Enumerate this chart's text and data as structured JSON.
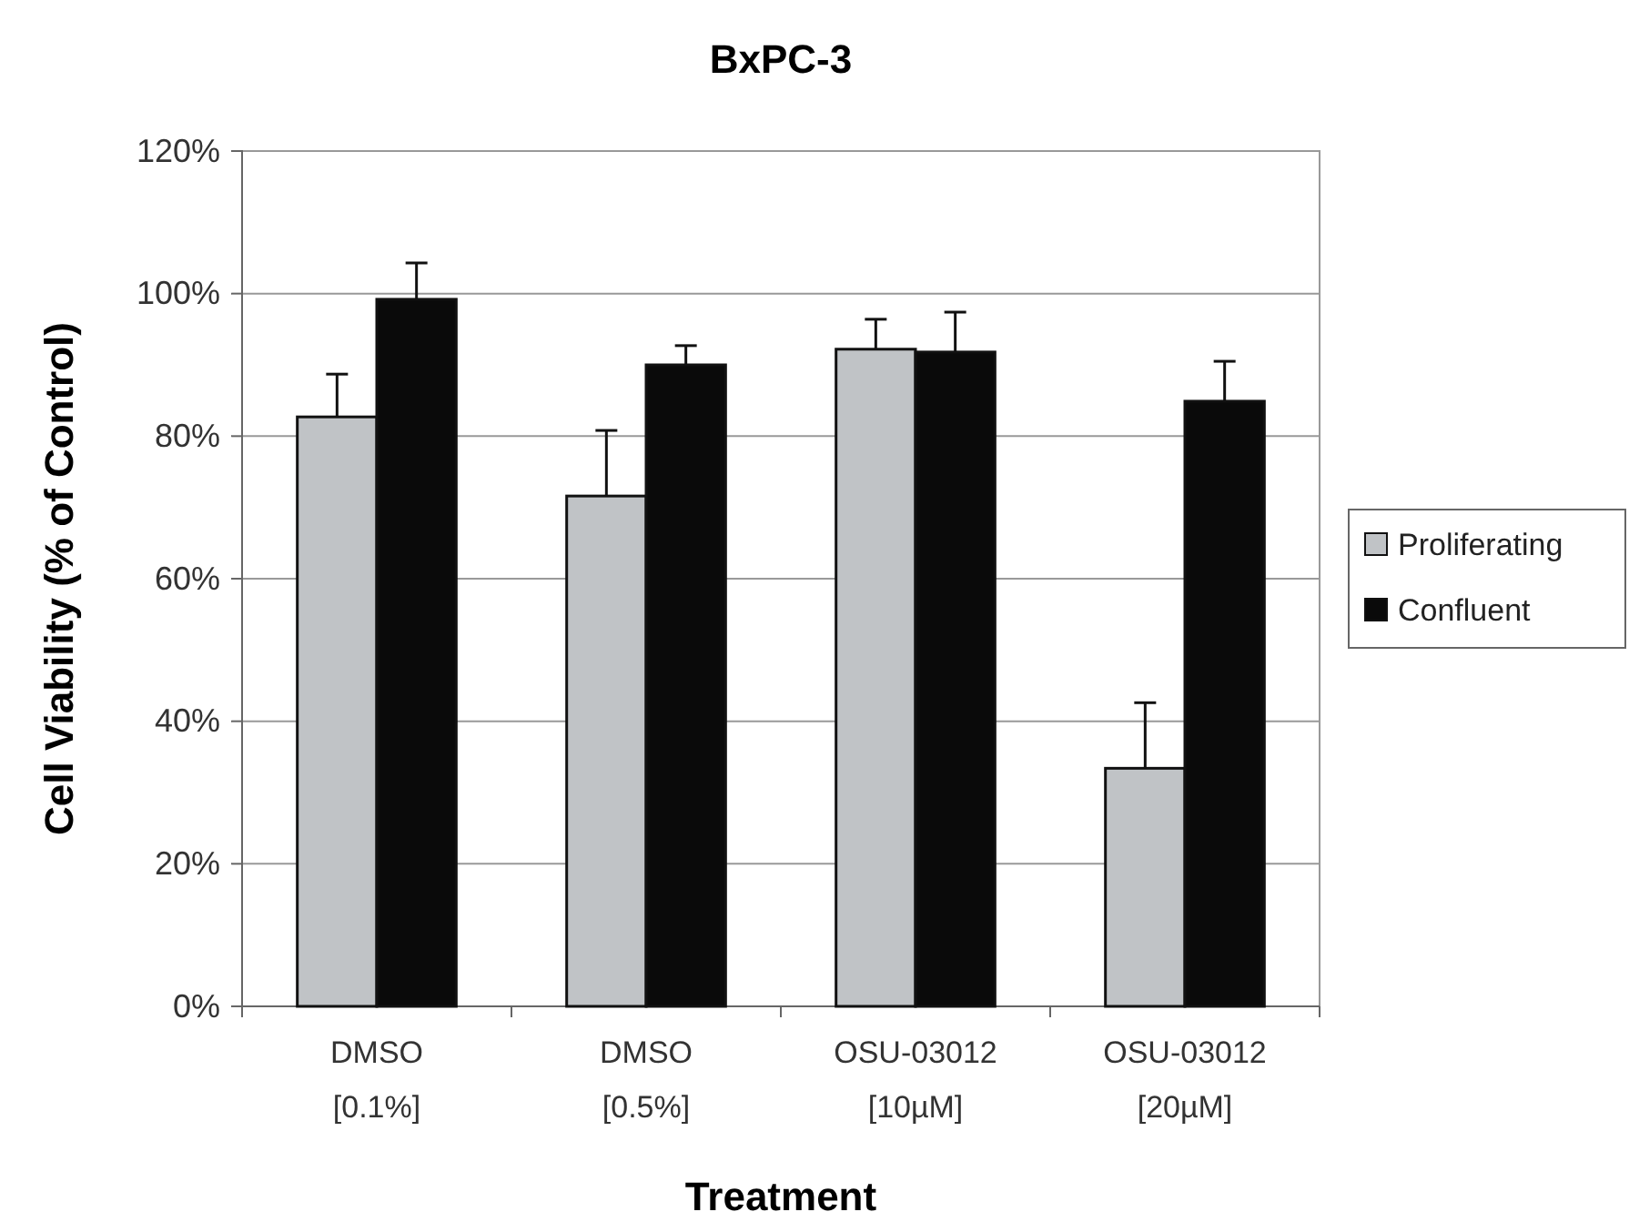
{
  "chart_data": {
    "type": "bar",
    "title": "BxPC-3",
    "xlabel": "Treatment",
    "ylabel": "Cell Viability (% of Control)",
    "categories": [
      "DMSO\n[0.1%]",
      "DMSO\n[0.5%]",
      "OSU-03012\n[10µM]",
      "OSU-03012\n[20µM]"
    ],
    "series": [
      {
        "name": "Proliferating",
        "color": "#c0c3c6",
        "values": [
          82.7,
          71.6,
          92.2,
          33.4
        ],
        "errors": [
          [
            82.7,
            88.7
          ],
          [
            71.6,
            80.8
          ],
          [
            92.2,
            96.4
          ],
          [
            33.4,
            42.6
          ]
        ]
      },
      {
        "name": "Confluent",
        "color": "#0a0a0a",
        "values": [
          99.2,
          90.0,
          91.8,
          84.9
        ],
        "errors": [
          [
            99.2,
            104.3
          ],
          [
            90.0,
            92.7
          ],
          [
            91.8,
            97.4
          ],
          [
            84.9,
            90.5
          ]
        ]
      }
    ],
    "ylim": [
      0,
      120
    ],
    "yticks": [
      {
        "value": 0,
        "label": "0%"
      },
      {
        "value": 20,
        "label": "20%"
      },
      {
        "value": 40,
        "label": "40%"
      },
      {
        "value": 60,
        "label": "60%"
      },
      {
        "value": 80,
        "label": "80%"
      },
      {
        "value": 100,
        "label": "100%"
      },
      {
        "value": 120,
        "label": "120%"
      }
    ],
    "grid": "y",
    "legend": "right"
  }
}
